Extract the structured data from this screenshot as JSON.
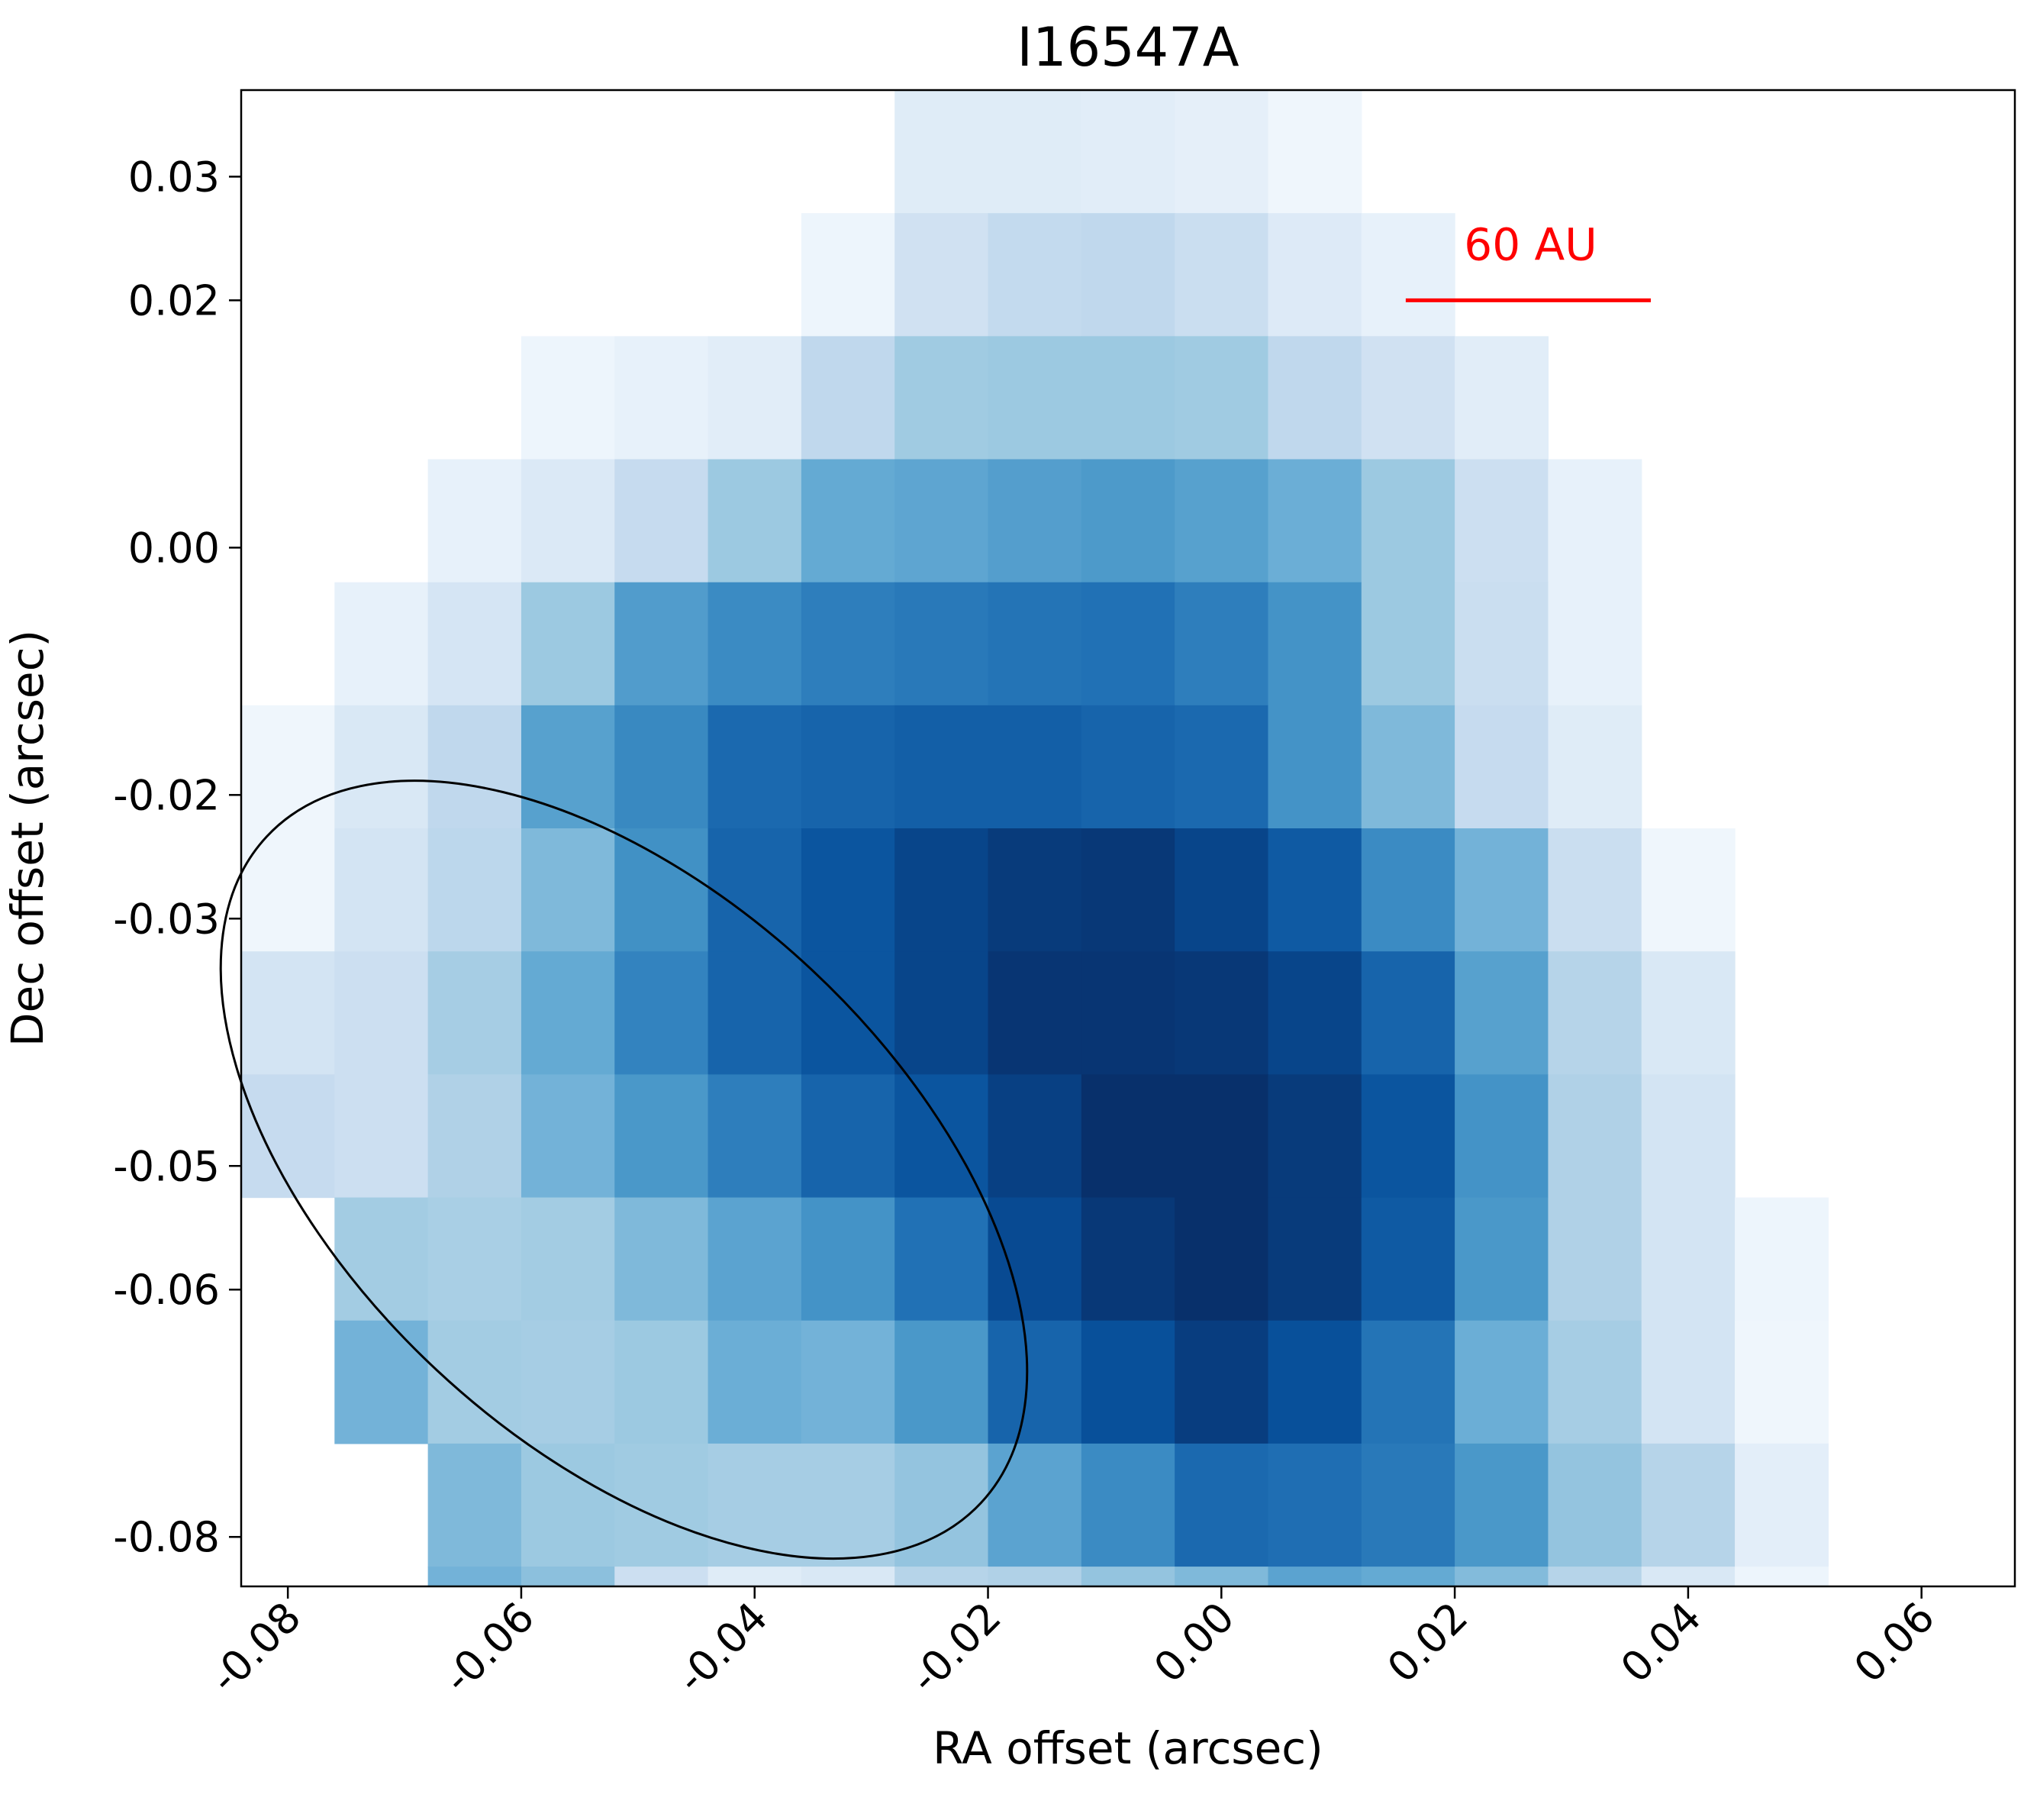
{
  "chart_data": {
    "type": "heatmap",
    "title": "I16547A",
    "xlabel": "RA offset (arcsec)",
    "ylabel": "Dec offset (arcsec)",
    "xlim": [
      -0.084,
      0.068
    ],
    "ylim": [
      -0.084,
      0.037
    ],
    "xticks": [
      -0.08,
      -0.06,
      -0.04,
      -0.02,
      0.0,
      0.02,
      0.04,
      0.06
    ],
    "xtick_labels": [
      "-0.08",
      "-0.06",
      "-0.04",
      "-0.02",
      "0.00",
      "0.02",
      "0.04",
      "0.06"
    ],
    "yticks": [
      0.03,
      0.02,
      0.0,
      -0.02,
      -0.03,
      -0.05,
      -0.06,
      -0.08
    ],
    "ytick_labels": [
      "0.03",
      "0.02",
      "0.00",
      "-0.02",
      "-0.03",
      "-0.05",
      "-0.06",
      "-0.08"
    ],
    "colormap": "Blues",
    "grid": false,
    "pixel_grid": {
      "x0": -0.084,
      "dx": 0.008,
      "y0": 0.037,
      "dy": -0.00995,
      "values": [
        [
          0,
          0,
          0,
          0,
          0,
          0,
          0,
          0.12,
          0.12,
          0.11,
          0.09,
          0.04,
          0,
          0,
          0,
          0,
          0,
          0,
          0
        ],
        [
          0,
          0,
          0,
          0,
          0,
          0,
          0.05,
          0.2,
          0.26,
          0.27,
          0.23,
          0.13,
          0.08,
          0,
          0,
          0,
          0,
          0,
          0
        ],
        [
          0,
          0,
          0,
          0.05,
          0.08,
          0.11,
          0.27,
          0.37,
          0.38,
          0.38,
          0.37,
          0.27,
          0.2,
          0.11,
          0,
          0,
          0,
          0,
          0
        ],
        [
          0,
          0,
          0.08,
          0.14,
          0.25,
          0.38,
          0.52,
          0.54,
          0.57,
          0.59,
          0.56,
          0.5,
          0.38,
          0.22,
          0.08,
          0,
          0,
          0,
          0
        ],
        [
          0,
          0.08,
          0.17,
          0.38,
          0.58,
          0.65,
          0.7,
          0.72,
          0.74,
          0.75,
          0.7,
          0.62,
          0.38,
          0.23,
          0.08,
          0,
          0,
          0,
          0
        ],
        [
          0.04,
          0.15,
          0.27,
          0.56,
          0.66,
          0.78,
          0.8,
          0.82,
          0.82,
          0.8,
          0.78,
          0.62,
          0.45,
          0.25,
          0.12,
          0,
          0,
          0,
          0
        ],
        [
          0.04,
          0.18,
          0.28,
          0.45,
          0.63,
          0.8,
          0.86,
          0.92,
          0.96,
          0.97,
          0.92,
          0.84,
          0.65,
          0.48,
          0.23,
          0.04,
          0,
          0,
          0
        ],
        [
          0.18,
          0.22,
          0.35,
          0.52,
          0.68,
          0.8,
          0.86,
          0.92,
          0.98,
          0.98,
          0.97,
          0.92,
          0.8,
          0.56,
          0.3,
          0.15,
          0,
          0,
          0
        ],
        [
          0.25,
          0.22,
          0.32,
          0.48,
          0.6,
          0.7,
          0.8,
          0.86,
          0.94,
          1.0,
          1.0,
          0.96,
          0.86,
          0.62,
          0.32,
          0.18,
          0,
          0,
          0
        ],
        [
          0,
          0.36,
          0.34,
          0.36,
          0.45,
          0.55,
          0.62,
          0.75,
          0.9,
          0.97,
          1.0,
          0.96,
          0.84,
          0.6,
          0.32,
          0.18,
          0.05,
          0,
          0
        ],
        [
          0,
          0.48,
          0.36,
          0.35,
          0.38,
          0.5,
          0.48,
          0.6,
          0.8,
          0.88,
          0.95,
          0.88,
          0.74,
          0.5,
          0.35,
          0.18,
          0.04,
          0,
          0
        ],
        [
          0,
          0,
          0.45,
          0.38,
          0.37,
          0.35,
          0.35,
          0.4,
          0.55,
          0.65,
          0.78,
          0.76,
          0.72,
          0.6,
          0.4,
          0.3,
          0.1,
          0,
          0
        ],
        [
          0,
          0,
          0.48,
          0.42,
          0.22,
          0.12,
          0.15,
          0.3,
          0.32,
          0.4,
          0.45,
          0.55,
          0.52,
          0.44,
          0.3,
          0.15,
          0.05,
          0,
          0
        ],
        [
          0,
          0,
          0,
          0.44,
          0.3,
          0.05,
          0.05,
          0.08,
          0.2,
          0.25,
          0.28,
          0.28,
          0.28,
          0.24,
          0.15,
          0,
          0,
          0,
          0
        ],
        [
          0,
          0,
          0,
          0,
          0.28,
          0.05,
          0.03,
          0.03,
          0.03,
          0.08,
          0.12,
          0.16,
          0.16,
          0.12,
          0.05,
          0,
          0,
          0,
          0
        ],
        [
          0,
          0,
          0,
          0,
          0.22,
          0,
          0,
          0,
          0,
          0,
          0,
          0.05,
          0.05,
          0.04,
          0,
          0,
          0,
          0,
          0
        ]
      ]
    },
    "annotations": [
      {
        "type": "scalebar",
        "label": "60 AU",
        "x_start": 0.0158,
        "x_end": 0.0368,
        "y": 0.02,
        "label_position": [
          0.0265,
          0.0245
        ],
        "color": "#ff0000"
      },
      {
        "type": "beam-ellipse",
        "center": [
          -0.0512,
          -0.0503
        ],
        "major_axis": 0.079,
        "minor_axis": 0.047,
        "position_angle_deg": 47,
        "color": "#000000"
      }
    ]
  }
}
